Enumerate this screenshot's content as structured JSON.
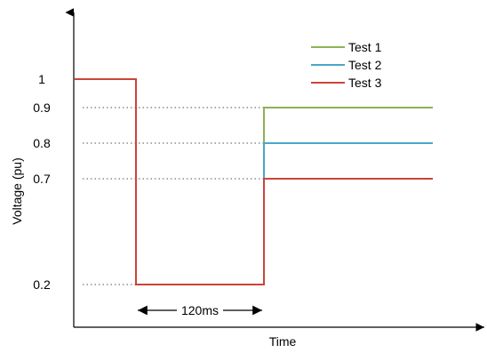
{
  "chart_data": {
    "type": "line",
    "title": "",
    "xlabel": "Time",
    "ylabel": "Voltage (pu)",
    "yticks": [
      {
        "value": 1,
        "label": "1"
      },
      {
        "value": 0.9,
        "label": "0.9"
      },
      {
        "value": 0.8,
        "label": "0.8"
      },
      {
        "value": 0.7,
        "label": "0.7"
      },
      {
        "value": 0.2,
        "label": "0.2"
      }
    ],
    "grid": "dotted horizontal reference lines at 0.9, 0.8, 0.7, 0.2",
    "legend_position": "top-right",
    "annotation": {
      "text": "120ms",
      "x_start": 1,
      "x_end": 3,
      "type": "double-arrow"
    },
    "series": [
      {
        "name": "Test 1",
        "color": "#8db255",
        "x": [
          0,
          1,
          1,
          3,
          3,
          6
        ],
        "y": [
          1,
          1,
          0.2,
          0.2,
          0.9,
          0.9
        ]
      },
      {
        "name": "Test 2",
        "color": "#4aa6c8",
        "x": [
          0,
          1,
          1,
          3,
          3,
          6
        ],
        "y": [
          1,
          1,
          0.2,
          0.2,
          0.8,
          0.8
        ]
      },
      {
        "name": "Test 3",
        "color": "#c8453a",
        "x": [
          0,
          1,
          1,
          3,
          3,
          6
        ],
        "y": [
          1,
          1,
          0.2,
          0.2,
          0.7,
          0.7
        ]
      }
    ]
  }
}
